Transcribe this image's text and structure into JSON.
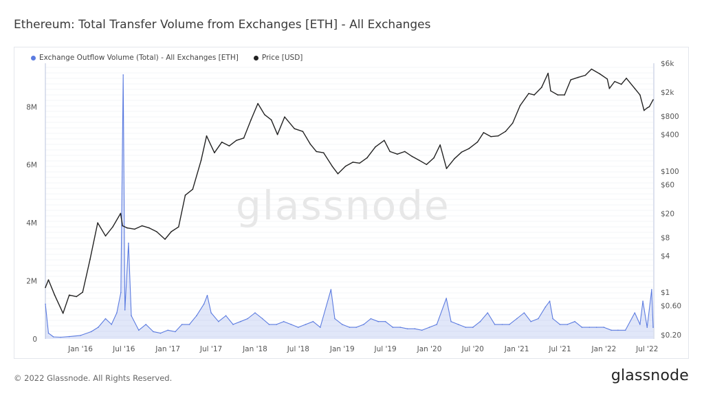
{
  "page": {
    "title": "Ethereum: Total Transfer Volume from Exchanges [ETH] - All Exchanges",
    "footer": "© 2022 Glassnode. All Rights Reserved.",
    "brand": "glassnode",
    "watermark": "glassnode"
  },
  "colors": {
    "volume": "#5b7be0",
    "price": "#222222",
    "grid": "#e8eaef"
  },
  "chart_data": {
    "type": "line",
    "title": "Ethereum: Total Transfer Volume from Exchanges [ETH] - All Exchanges",
    "legend_position": "top-left",
    "grid": true,
    "x_range": [
      "2015-08-07",
      "2022-07-26"
    ],
    "x_ticks": [
      {
        "label": "Jan '16",
        "date": "2016-01-01"
      },
      {
        "label": "Jul '16",
        "date": "2016-07-01"
      },
      {
        "label": "Jan '17",
        "date": "2017-01-01"
      },
      {
        "label": "Jul '17",
        "date": "2017-07-01"
      },
      {
        "label": "Jan '18",
        "date": "2018-01-01"
      },
      {
        "label": "Jul '18",
        "date": "2018-07-01"
      },
      {
        "label": "Jan '19",
        "date": "2019-01-01"
      },
      {
        "label": "Jul '19",
        "date": "2019-07-01"
      },
      {
        "label": "Jan '20",
        "date": "2020-01-01"
      },
      {
        "label": "Jul '20",
        "date": "2020-07-01"
      },
      {
        "label": "Jan '21",
        "date": "2021-01-01"
      },
      {
        "label": "Jul '21",
        "date": "2021-07-01"
      },
      {
        "label": "Jan '22",
        "date": "2022-01-01"
      },
      {
        "label": "Jul '22",
        "date": "2022-07-01"
      }
    ],
    "y_left": {
      "scale": "linear",
      "range": [
        0,
        9500000
      ],
      "ticks": [
        {
          "label": "0",
          "value": 0
        },
        {
          "label": "2M",
          "value": 2000000
        },
        {
          "label": "4M",
          "value": 4000000
        },
        {
          "label": "6M",
          "value": 6000000
        },
        {
          "label": "8M",
          "value": 8000000
        }
      ]
    },
    "y_right": {
      "scale": "log",
      "range": [
        0.17,
        6000
      ],
      "ticks": [
        {
          "label": "$0.20",
          "value": 0.2
        },
        {
          "label": "$0.60",
          "value": 0.6
        },
        {
          "label": "$1",
          "value": 1
        },
        {
          "label": "$4",
          "value": 4
        },
        {
          "label": "$8",
          "value": 8
        },
        {
          "label": "$20",
          "value": 20
        },
        {
          "label": "$60",
          "value": 60
        },
        {
          "label": "$100",
          "value": 100
        },
        {
          "label": "$400",
          "value": 400
        },
        {
          "label": "$800",
          "value": 800
        },
        {
          "label": "$2k",
          "value": 2000
        },
        {
          "label": "$6k",
          "value": 6000
        }
      ]
    },
    "series": [
      {
        "name": "Exchange Outflow Volume (Total) - All Exchanges [ETH]",
        "axis": "left",
        "color": "#5b7be0",
        "points": [
          [
            "2015-08-07",
            1200000
          ],
          [
            "2015-08-20",
            200000
          ],
          [
            "2015-09-10",
            70000
          ],
          [
            "2015-10-10",
            60000
          ],
          [
            "2015-11-15",
            80000
          ],
          [
            "2016-01-01",
            120000
          ],
          [
            "2016-02-15",
            250000
          ],
          [
            "2016-03-15",
            400000
          ],
          [
            "2016-04-15",
            700000
          ],
          [
            "2016-05-10",
            500000
          ],
          [
            "2016-06-01",
            900000
          ],
          [
            "2016-06-18",
            1600000
          ],
          [
            "2016-06-28",
            9100000
          ],
          [
            "2016-07-05",
            1000000
          ],
          [
            "2016-07-20",
            3300000
          ],
          [
            "2016-08-01",
            800000
          ],
          [
            "2016-09-01",
            300000
          ],
          [
            "2016-10-01",
            500000
          ],
          [
            "2016-11-01",
            250000
          ],
          [
            "2016-12-01",
            200000
          ],
          [
            "2017-01-01",
            300000
          ],
          [
            "2017-02-01",
            250000
          ],
          [
            "2017-03-01",
            500000
          ],
          [
            "2017-04-01",
            500000
          ],
          [
            "2017-05-01",
            800000
          ],
          [
            "2017-06-01",
            1200000
          ],
          [
            "2017-06-15",
            1500000
          ],
          [
            "2017-07-01",
            900000
          ],
          [
            "2017-08-01",
            600000
          ],
          [
            "2017-09-01",
            800000
          ],
          [
            "2017-10-01",
            500000
          ],
          [
            "2017-11-01",
            600000
          ],
          [
            "2017-12-01",
            700000
          ],
          [
            "2018-01-01",
            900000
          ],
          [
            "2018-02-01",
            700000
          ],
          [
            "2018-03-01",
            500000
          ],
          [
            "2018-04-01",
            500000
          ],
          [
            "2018-05-01",
            600000
          ],
          [
            "2018-06-01",
            500000
          ],
          [
            "2018-07-01",
            400000
          ],
          [
            "2018-08-01",
            500000
          ],
          [
            "2018-09-01",
            600000
          ],
          [
            "2018-10-01",
            400000
          ],
          [
            "2018-11-15",
            1700000
          ],
          [
            "2018-12-01",
            700000
          ],
          [
            "2019-01-01",
            500000
          ],
          [
            "2019-02-01",
            400000
          ],
          [
            "2019-03-01",
            400000
          ],
          [
            "2019-04-01",
            500000
          ],
          [
            "2019-05-01",
            700000
          ],
          [
            "2019-06-01",
            600000
          ],
          [
            "2019-07-01",
            600000
          ],
          [
            "2019-08-01",
            400000
          ],
          [
            "2019-09-01",
            400000
          ],
          [
            "2019-10-01",
            350000
          ],
          [
            "2019-11-01",
            350000
          ],
          [
            "2019-12-01",
            300000
          ],
          [
            "2020-01-01",
            400000
          ],
          [
            "2020-02-01",
            500000
          ],
          [
            "2020-03-12",
            1400000
          ],
          [
            "2020-04-01",
            600000
          ],
          [
            "2020-05-01",
            500000
          ],
          [
            "2020-06-01",
            400000
          ],
          [
            "2020-07-01",
            400000
          ],
          [
            "2020-08-01",
            600000
          ],
          [
            "2020-09-01",
            900000
          ],
          [
            "2020-10-01",
            500000
          ],
          [
            "2020-11-01",
            500000
          ],
          [
            "2020-12-01",
            500000
          ],
          [
            "2021-01-01",
            700000
          ],
          [
            "2021-02-01",
            900000
          ],
          [
            "2021-03-01",
            600000
          ],
          [
            "2021-04-01",
            700000
          ],
          [
            "2021-05-01",
            1100000
          ],
          [
            "2021-05-19",
            1300000
          ],
          [
            "2021-06-01",
            700000
          ],
          [
            "2021-07-01",
            500000
          ],
          [
            "2021-08-01",
            500000
          ],
          [
            "2021-09-01",
            600000
          ],
          [
            "2021-10-01",
            400000
          ],
          [
            "2021-11-01",
            400000
          ],
          [
            "2021-12-01",
            400000
          ],
          [
            "2022-01-01",
            400000
          ],
          [
            "2022-02-01",
            300000
          ],
          [
            "2022-03-01",
            300000
          ],
          [
            "2022-04-01",
            300000
          ],
          [
            "2022-05-10",
            900000
          ],
          [
            "2022-06-01",
            500000
          ],
          [
            "2022-06-13",
            1300000
          ],
          [
            "2022-07-01",
            400000
          ],
          [
            "2022-07-20",
            1700000
          ],
          [
            "2022-07-26",
            400000
          ]
        ]
      },
      {
        "name": "Price [USD]",
        "axis": "right",
        "color": "#222222",
        "points": [
          [
            "2015-08-07",
            1.2
          ],
          [
            "2015-08-20",
            1.6
          ],
          [
            "2015-09-15",
            0.9
          ],
          [
            "2015-10-20",
            0.45
          ],
          [
            "2015-11-15",
            0.9
          ],
          [
            "2015-12-15",
            0.85
          ],
          [
            "2016-01-10",
            1.0
          ],
          [
            "2016-02-10",
            3.5
          ],
          [
            "2016-03-13",
            14.0
          ],
          [
            "2016-04-15",
            8.5
          ],
          [
            "2016-05-15",
            12.0
          ],
          [
            "2016-06-17",
            20.0
          ],
          [
            "2016-06-25",
            12.5
          ],
          [
            "2016-07-15",
            11.5
          ],
          [
            "2016-08-15",
            11.0
          ],
          [
            "2016-09-15",
            12.5
          ],
          [
            "2016-10-15",
            11.5
          ],
          [
            "2016-11-15",
            10.0
          ],
          [
            "2016-12-20",
            7.5
          ],
          [
            "2017-01-15",
            10.0
          ],
          [
            "2017-02-15",
            12.0
          ],
          [
            "2017-03-15",
            40.0
          ],
          [
            "2017-04-15",
            50.0
          ],
          [
            "2017-05-20",
            150.0
          ],
          [
            "2017-06-12",
            380.0
          ],
          [
            "2017-07-15",
            200.0
          ],
          [
            "2017-08-15",
            300.0
          ],
          [
            "2017-09-15",
            260.0
          ],
          [
            "2017-10-15",
            320.0
          ],
          [
            "2017-11-15",
            350.0
          ],
          [
            "2017-12-15",
            700.0
          ],
          [
            "2018-01-13",
            1300.0
          ],
          [
            "2018-02-10",
            850.0
          ],
          [
            "2018-03-10",
            700.0
          ],
          [
            "2018-04-05",
            400.0
          ],
          [
            "2018-05-05",
            780.0
          ],
          [
            "2018-06-15",
            500.0
          ],
          [
            "2018-07-20",
            450.0
          ],
          [
            "2018-08-20",
            280.0
          ],
          [
            "2018-09-15",
            210.0
          ],
          [
            "2018-10-15",
            200.0
          ],
          [
            "2018-11-20",
            120.0
          ],
          [
            "2018-12-14",
            90.0
          ],
          [
            "2019-01-15",
            120.0
          ],
          [
            "2019-02-15",
            140.0
          ],
          [
            "2019-03-15",
            135.0
          ],
          [
            "2019-04-15",
            165.0
          ],
          [
            "2019-05-20",
            250.0
          ],
          [
            "2019-06-26",
            320.0
          ],
          [
            "2019-07-20",
            210.0
          ],
          [
            "2019-08-20",
            190.0
          ],
          [
            "2019-09-20",
            210.0
          ],
          [
            "2019-10-20",
            175.0
          ],
          [
            "2019-11-20",
            150.0
          ],
          [
            "2019-12-20",
            128.0
          ],
          [
            "2020-01-20",
            165.0
          ],
          [
            "2020-02-15",
            270.0
          ],
          [
            "2020-03-13",
            110.0
          ],
          [
            "2020-04-15",
            160.0
          ],
          [
            "2020-05-15",
            205.0
          ],
          [
            "2020-06-15",
            235.0
          ],
          [
            "2020-07-20",
            300.0
          ],
          [
            "2020-08-15",
            430.0
          ],
          [
            "2020-09-15",
            370.0
          ],
          [
            "2020-10-15",
            380.0
          ],
          [
            "2020-11-15",
            450.0
          ],
          [
            "2020-12-15",
            620.0
          ],
          [
            "2021-01-15",
            1200.0
          ],
          [
            "2021-02-20",
            1900.0
          ],
          [
            "2021-03-15",
            1800.0
          ],
          [
            "2021-04-15",
            2400.0
          ],
          [
            "2021-05-12",
            4100.0
          ],
          [
            "2021-05-23",
            2100.0
          ],
          [
            "2021-06-22",
            1800.0
          ],
          [
            "2021-07-20",
            1800.0
          ],
          [
            "2021-08-15",
            3200.0
          ],
          [
            "2021-09-15",
            3500.0
          ],
          [
            "2021-10-15",
            3800.0
          ],
          [
            "2021-11-10",
            4800.0
          ],
          [
            "2021-12-15",
            4000.0
          ],
          [
            "2022-01-15",
            3300.0
          ],
          [
            "2022-01-24",
            2300.0
          ],
          [
            "2022-02-15",
            3000.0
          ],
          [
            "2022-03-15",
            2700.0
          ],
          [
            "2022-04-05",
            3400.0
          ],
          [
            "2022-05-10",
            2300.0
          ],
          [
            "2022-06-01",
            1800.0
          ],
          [
            "2022-06-18",
            1000.0
          ],
          [
            "2022-07-01",
            1100.0
          ],
          [
            "2022-07-10",
            1150.0
          ],
          [
            "2022-07-26",
            1500.0
          ]
        ]
      }
    ]
  }
}
